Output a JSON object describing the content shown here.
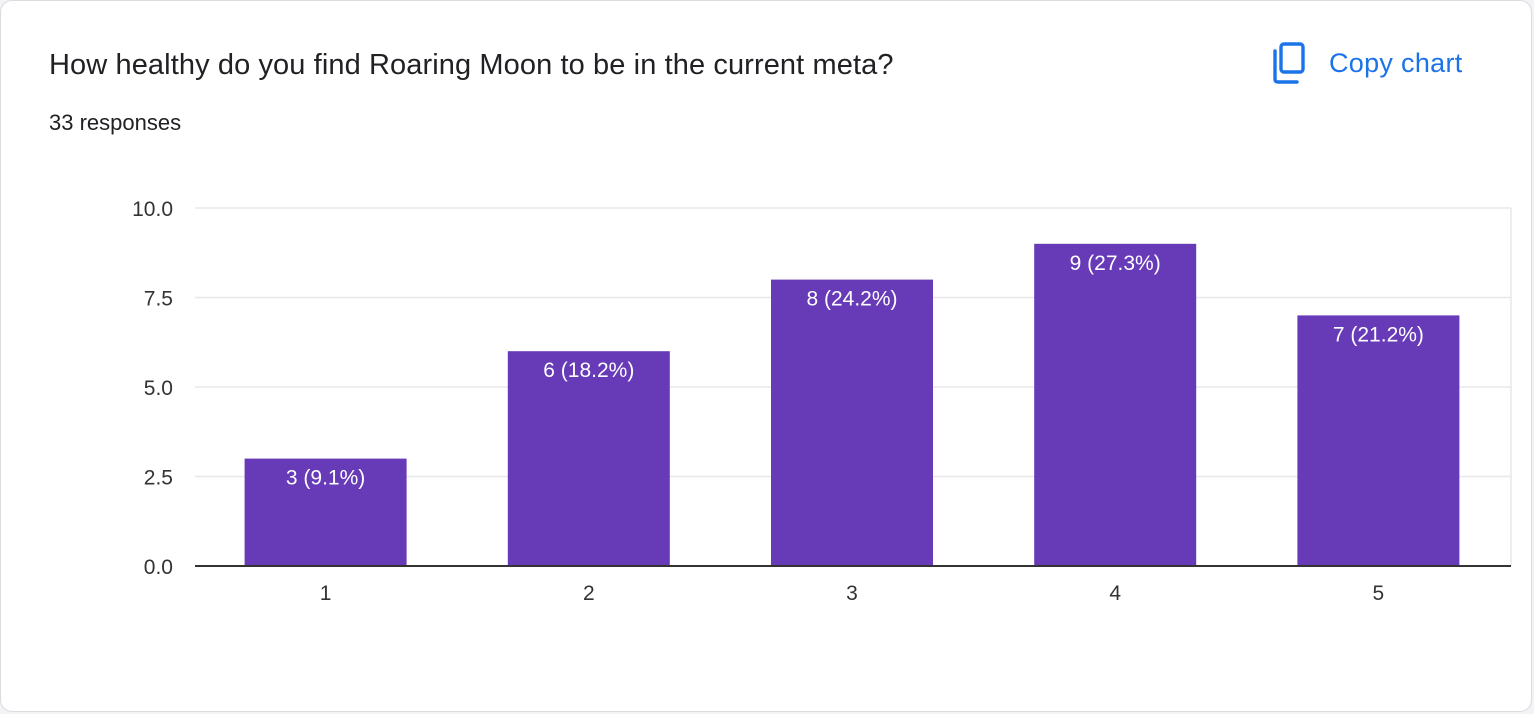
{
  "question": "How healthy do you find Roaring Moon to be in the current meta?",
  "responses_label": "33 responses",
  "copy_button": {
    "label": "Copy chart",
    "icon": "copy-icon"
  },
  "colors": {
    "bar": "#673ab7",
    "accent": "#1a73e8",
    "grid": "#e8e8e8",
    "axis": "#333333",
    "text": "#202124"
  },
  "chart_data": {
    "type": "bar",
    "categories": [
      "1",
      "2",
      "3",
      "4",
      "5"
    ],
    "values": [
      3,
      6,
      8,
      9,
      7
    ],
    "data_labels": [
      "3 (9.1%)",
      "6 (18.2%)",
      "8 (24.2%)",
      "9 (27.3%)",
      "7 (21.2%)"
    ],
    "ylim": [
      0,
      10
    ],
    "yticks": [
      "0.0",
      "2.5",
      "5.0",
      "7.5",
      "10.0"
    ],
    "ytick_values": [
      0,
      2.5,
      5,
      7.5,
      10
    ],
    "grid": true,
    "title": "How healthy do you find Roaring Moon to be in the current meta?",
    "xlabel": "",
    "ylabel": ""
  }
}
